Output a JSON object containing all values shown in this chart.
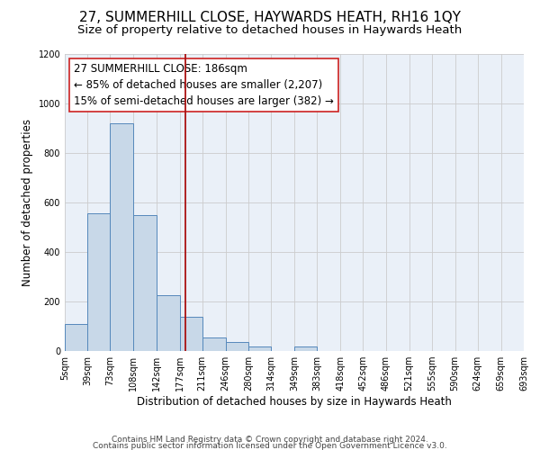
{
  "title": "27, SUMMERHILL CLOSE, HAYWARDS HEATH, RH16 1QY",
  "subtitle": "Size of property relative to detached houses in Haywards Heath",
  "xlabel": "Distribution of detached houses by size in Haywards Heath",
  "ylabel": "Number of detached properties",
  "bin_edges": [
    5,
    39,
    73,
    108,
    142,
    177,
    211,
    246,
    280,
    314,
    349,
    383,
    418,
    452,
    486,
    521,
    555,
    590,
    624,
    659,
    693
  ],
  "bar_heights": [
    110,
    555,
    920,
    550,
    225,
    140,
    55,
    35,
    20,
    0,
    20,
    0,
    0,
    0,
    0,
    0,
    0,
    0,
    0,
    0
  ],
  "bar_color": "#c8d8e8",
  "bar_edge_color": "#5588bb",
  "vline_x": 186,
  "vline_color": "#aa1111",
  "annotation_line1": "27 SUMMERHILL CLOSE: 186sqm",
  "annotation_line2": "← 85% of detached houses are smaller (2,207)",
  "annotation_line3": "15% of semi-detached houses are larger (382) →",
  "annotation_fontsize": 8.5,
  "ylim": [
    0,
    1200
  ],
  "xlim": [
    5,
    693
  ],
  "tick_labels": [
    "5sqm",
    "39sqm",
    "73sqm",
    "108sqm",
    "142sqm",
    "177sqm",
    "211sqm",
    "246sqm",
    "280sqm",
    "314sqm",
    "349sqm",
    "383sqm",
    "418sqm",
    "452sqm",
    "486sqm",
    "521sqm",
    "555sqm",
    "590sqm",
    "624sqm",
    "659sqm",
    "693sqm"
  ],
  "tick_positions": [
    5,
    39,
    73,
    108,
    142,
    177,
    211,
    246,
    280,
    314,
    349,
    383,
    418,
    452,
    486,
    521,
    555,
    590,
    624,
    659,
    693
  ],
  "footer_line1": "Contains HM Land Registry data © Crown copyright and database right 2024.",
  "footer_line2": "Contains public sector information licensed under the Open Government Licence v3.0.",
  "grid_color": "#cccccc",
  "background_color": "#eaf0f8",
  "title_fontsize": 11,
  "subtitle_fontsize": 9.5,
  "xlabel_fontsize": 8.5,
  "ylabel_fontsize": 8.5,
  "tick_fontsize": 7,
  "footer_fontsize": 6.5
}
